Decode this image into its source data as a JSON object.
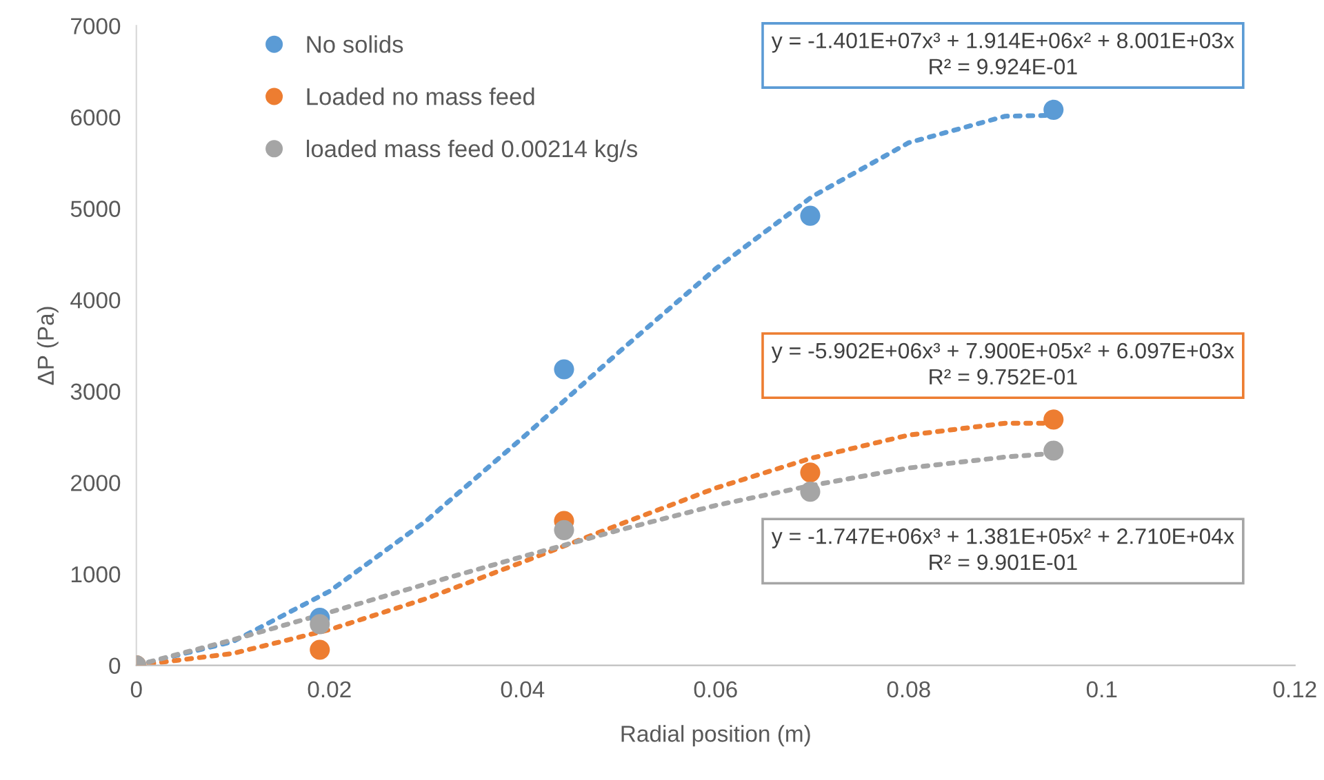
{
  "chart_data": {
    "type": "scatter",
    "xlabel": "Radial position (m)",
    "ylabel": "ΔP (Pa)",
    "xlim": [
      0,
      0.12
    ],
    "xticks": [
      0,
      0.02,
      0.04,
      0.06,
      0.08,
      0.1,
      0.12
    ],
    "ylim": [
      0,
      7000
    ],
    "yticks": [
      0,
      1000,
      2000,
      3000,
      4000,
      5000,
      6000,
      7000
    ],
    "grid": false,
    "legend": "top left",
    "series": [
      {
        "name": "No solids",
        "color": "#5b9bd5",
        "marker": "circle",
        "x": [
          0.019,
          0.0443,
          0.0698,
          0.095
        ],
        "values": [
          520,
          3240,
          4920,
          6080
        ]
      },
      {
        "name": "Loaded no mass feed",
        "color": "#ed7d31",
        "marker": "circle",
        "x": [
          0,
          0.019,
          0.0443,
          0.0698,
          0.095
        ],
        "values": [
          0,
          170,
          1580,
          2110,
          2690
        ]
      },
      {
        "name": "loaded mass feed 0.00214 kg/s",
        "color": "#a5a5a5",
        "marker": "circle",
        "x": [
          0,
          0.019,
          0.0443,
          0.0698,
          0.095
        ],
        "values": [
          0,
          450,
          1480,
          1900,
          2350
        ]
      },
      {
        "type": "line",
        "line_style": "dotted",
        "marker": "none",
        "color": "#5b9bd5",
        "x": [
          0,
          0.01,
          0.02,
          0.03,
          0.04,
          0.05,
          0.06,
          0.07,
          0.08,
          0.09,
          0.095
        ],
        "values": [
          0,
          260,
          810,
          1580,
          2490,
          3430,
          4340,
          5130,
          5720,
          6010,
          6020
        ]
      },
      {
        "type": "line",
        "line_style": "dotted",
        "marker": "none",
        "color": "#ed7d31",
        "x": [
          0,
          0.01,
          0.02,
          0.03,
          0.04,
          0.05,
          0.06,
          0.07,
          0.08,
          0.09,
          0.095
        ],
        "values": [
          0,
          130,
          390,
          730,
          1130,
          1540,
          1940,
          2270,
          2520,
          2650,
          2650
        ]
      },
      {
        "type": "line",
        "line_style": "dotted",
        "marker": "none",
        "color": "#a5a5a5",
        "x": [
          0,
          0.01,
          0.02,
          0.03,
          0.04,
          0.05,
          0.06,
          0.07,
          0.08,
          0.09,
          0.095
        ],
        "values": [
          0,
          280,
          580,
          890,
          1190,
          1480,
          1750,
          1970,
          2160,
          2280,
          2320
        ]
      }
    ],
    "annotations": [
      "y = -1.401E+07x³ + 1.914E+06x² + 8.001E+03x\nR² = 9.924E-01",
      "y = -5.902E+06x³ + 7.900E+05x² + 6.097E+03x\nR² = 9.752E-01",
      "y = -1.747E+06x³ + 1.381E+05x² + 2.710E+04x\nR² = 9.901E-01"
    ]
  }
}
